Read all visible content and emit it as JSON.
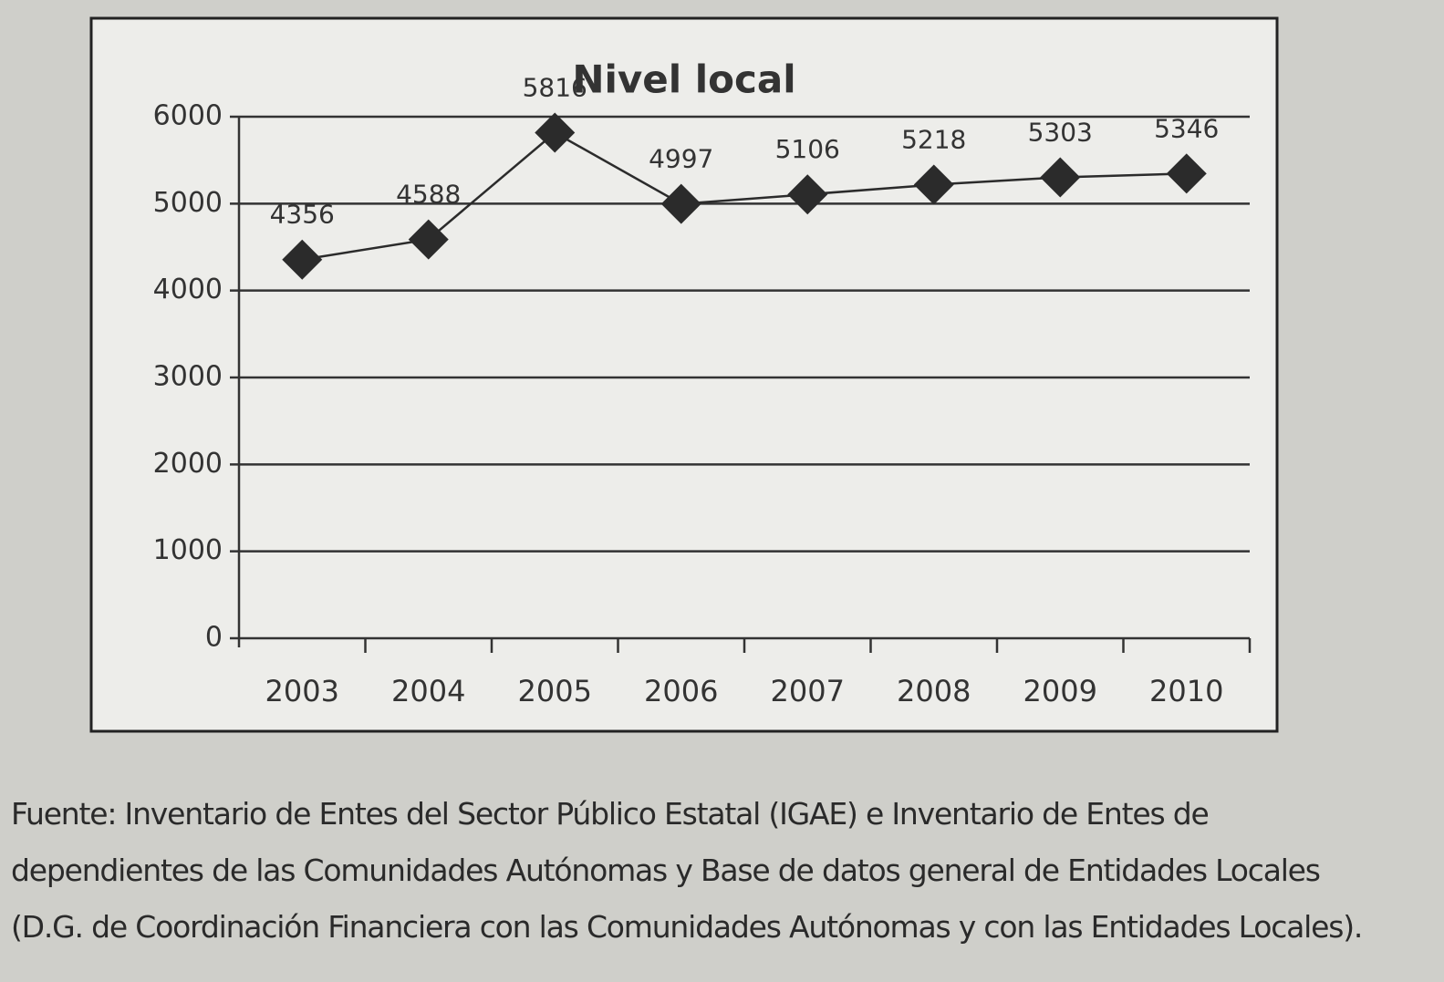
{
  "chart_data": {
    "type": "line",
    "title": "Nivel local",
    "categories": [
      "2003",
      "2004",
      "2005",
      "2006",
      "2007",
      "2008",
      "2009",
      "2010"
    ],
    "values": [
      4356,
      4588,
      5816,
      4997,
      5106,
      5218,
      5303,
      5346
    ],
    "color": "#2b2b2b",
    "ylim": [
      0,
      6000
    ],
    "yticks": [
      0,
      1000,
      2000,
      3000,
      4000,
      5000,
      6000
    ],
    "grid": true,
    "source": "Fuente: Inventario de Entes del Sector Público Estatal (IGAE) e Inventario de Entes de dependientes de las Comunidades Autónomas y Base de datos general de Entidades Locales (D.G. de Coordinación Financiera con las Comunidades Autónomas y con las Entidades Locales)."
  }
}
